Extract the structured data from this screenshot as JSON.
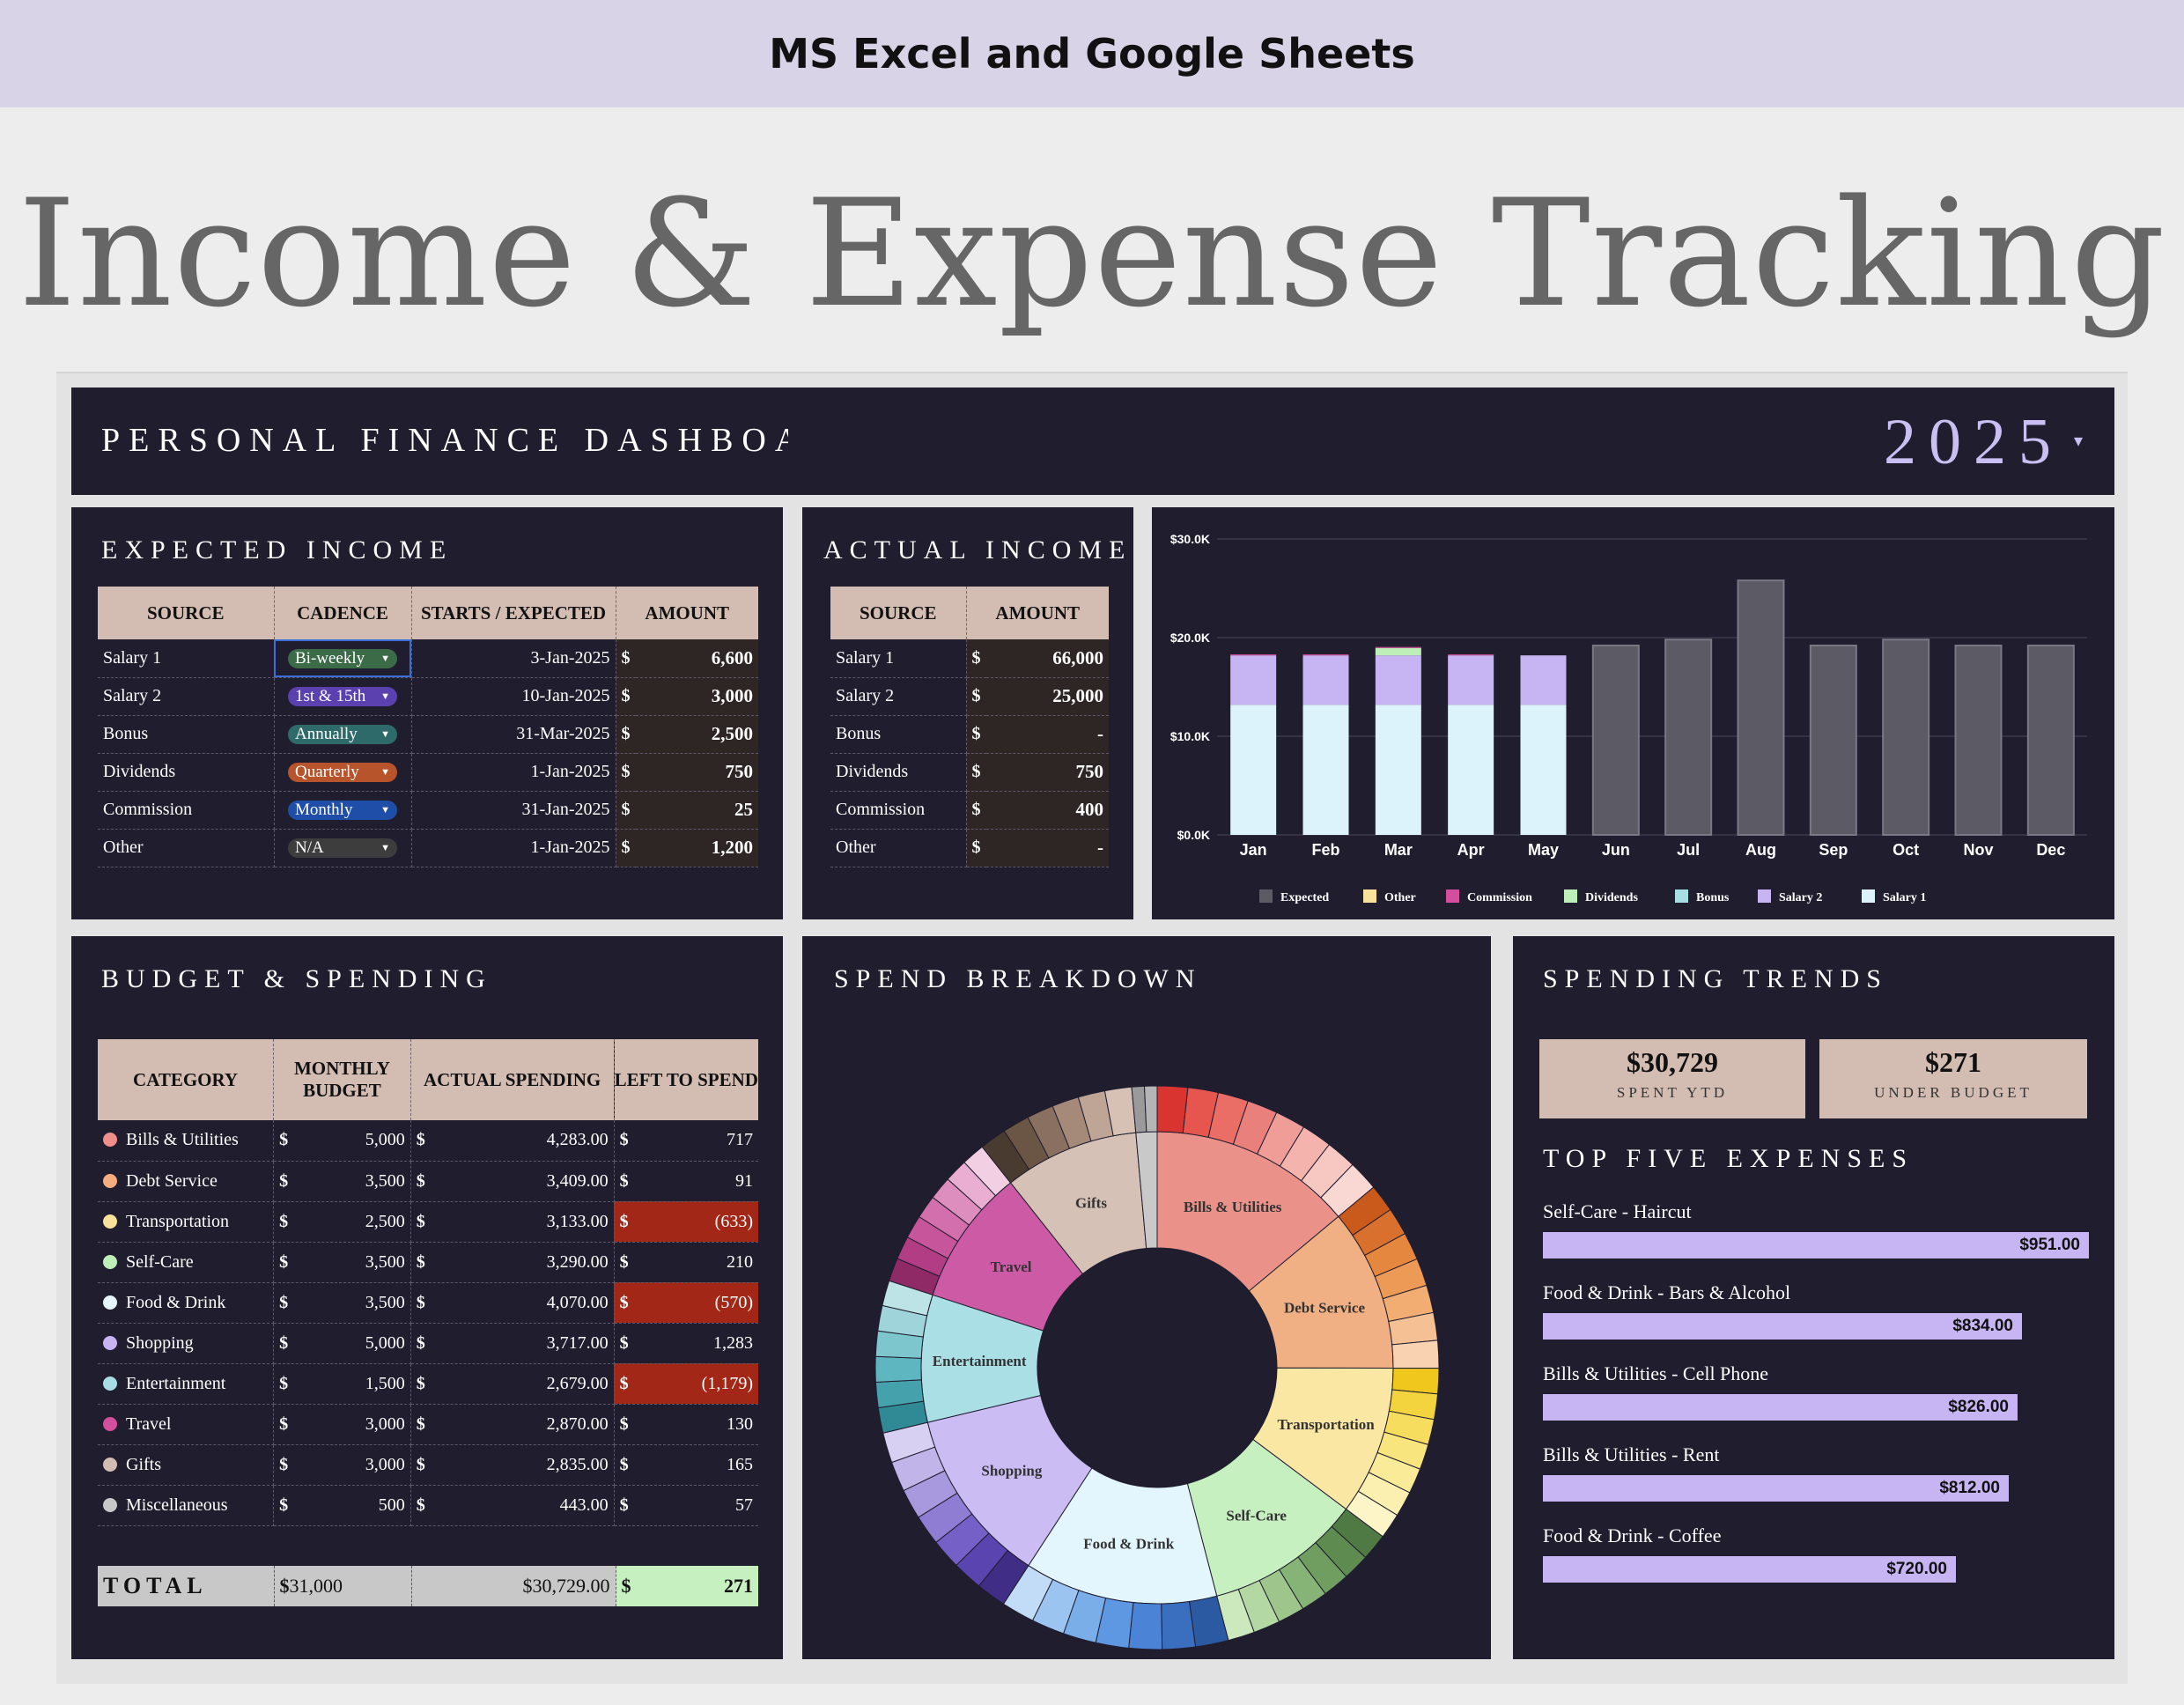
{
  "banner": "MS Excel and Google Sheets",
  "hero_title": "Income & Expense Tracking",
  "dashboard": {
    "title": "PERSONAL FINANCE DASHBOARD",
    "year": "2025"
  },
  "expected_income": {
    "title": "EXPECTED INCOME",
    "headers": [
      "SOURCE",
      "CADENCE",
      "STARTS / EXPECTED",
      "AMOUNT"
    ],
    "rows": [
      {
        "source": "Salary 1",
        "cadence": "Bi-weekly",
        "cadence_color": "#3c6b48",
        "starts": "3-Jan-2025",
        "amount": "6,600"
      },
      {
        "source": "Salary 2",
        "cadence": "1st & 15th",
        "cadence_color": "#5b40b0",
        "starts": "10-Jan-2025",
        "amount": "3,000"
      },
      {
        "source": "Bonus",
        "cadence": "Annually",
        "cadence_color": "#2f6a6a",
        "starts": "31-Mar-2025",
        "amount": "2,500"
      },
      {
        "source": "Dividends",
        "cadence": "Quarterly",
        "cadence_color": "#b8542c",
        "starts": "1-Jan-2025",
        "amount": "750"
      },
      {
        "source": "Commission",
        "cadence": "Monthly",
        "cadence_color": "#1f4ea8",
        "starts": "31-Jan-2025",
        "amount": "25"
      },
      {
        "source": "Other",
        "cadence": "N/A",
        "cadence_color": "#3d3d3d",
        "starts": "1-Jan-2025",
        "amount": "1,200"
      }
    ]
  },
  "actual_income": {
    "title": "ACTUAL INCOME",
    "headers": [
      "SOURCE",
      "AMOUNT"
    ],
    "rows": [
      {
        "source": "Salary 1",
        "amount": "66,000"
      },
      {
        "source": "Salary 2",
        "amount": "25,000"
      },
      {
        "source": "Bonus",
        "amount": "-"
      },
      {
        "source": "Dividends",
        "amount": "750"
      },
      {
        "source": "Commission",
        "amount": "400"
      },
      {
        "source": "Other",
        "amount": "-"
      }
    ]
  },
  "chart_data": {
    "type": "bar",
    "stacked": true,
    "categories": [
      "Jan",
      "Feb",
      "Mar",
      "Apr",
      "May",
      "Jun",
      "Jul",
      "Aug",
      "Sep",
      "Oct",
      "Nov",
      "Dec"
    ],
    "yticks": [
      "$0.0K",
      "$10.0K",
      "$20.0K",
      "$30.0K"
    ],
    "ylim": [
      0,
      30000
    ],
    "grid": true,
    "legend_position": "bottom",
    "series": [
      {
        "name": "Salary 1",
        "color": "#dcf3fb",
        "values": [
          13200,
          13200,
          13200,
          13200,
          13200,
          0,
          0,
          0,
          0,
          0,
          0,
          0
        ]
      },
      {
        "name": "Salary 2",
        "color": "#c6b5f2",
        "values": [
          5000,
          5000,
          5000,
          5000,
          5000,
          0,
          0,
          0,
          0,
          0,
          0,
          0
        ]
      },
      {
        "name": "Bonus",
        "color": "#a8dde3",
        "values": [
          0,
          0,
          0,
          0,
          0,
          0,
          0,
          0,
          0,
          0,
          0,
          0
        ]
      },
      {
        "name": "Dividends",
        "color": "#bfefb8",
        "values": [
          0,
          0,
          750,
          0,
          0,
          0,
          0,
          0,
          0,
          0,
          0,
          0
        ]
      },
      {
        "name": "Commission",
        "color": "#d34e9c",
        "values": [
          100,
          100,
          100,
          100,
          0,
          0,
          0,
          0,
          0,
          0,
          0,
          0
        ]
      },
      {
        "name": "Other",
        "color": "#f8e19a",
        "values": [
          0,
          0,
          0,
          0,
          0,
          0,
          0,
          0,
          0,
          0,
          0,
          0
        ]
      },
      {
        "name": "Expected",
        "color": "#5c5a64",
        "values": [
          0,
          0,
          0,
          0,
          0,
          19200,
          19800,
          25800,
          19200,
          19800,
          19200,
          19200
        ]
      }
    ],
    "legend_order": [
      "Expected",
      "Other",
      "Commission",
      "Dividends",
      "Bonus",
      "Salary 2",
      "Salary 1"
    ]
  },
  "budget": {
    "title": "BUDGET & SPENDING",
    "headers": [
      "CATEGORY",
      "MONTHLY BUDGET",
      "ACTUAL SPENDING",
      "LEFT TO SPEND"
    ],
    "rows": [
      {
        "category": "Bills & Utilities",
        "color": "#ef8f8a",
        "budget": "5,000",
        "actual": "4,283.00",
        "left": "717",
        "neg": false
      },
      {
        "category": "Debt Service",
        "color": "#f5ad7f",
        "budget": "3,500",
        "actual": "3,409.00",
        "left": "91",
        "neg": false
      },
      {
        "category": "Transportation",
        "color": "#f8e19a",
        "budget": "2,500",
        "actual": "3,133.00",
        "left": "(633)",
        "neg": true
      },
      {
        "category": "Self-Care",
        "color": "#bfefb8",
        "budget": "3,500",
        "actual": "3,290.00",
        "left": "210",
        "neg": false
      },
      {
        "category": "Food & Drink",
        "color": "#e4f6fc",
        "budget": "3,500",
        "actual": "4,070.00",
        "left": "(570)",
        "neg": true
      },
      {
        "category": "Shopping",
        "color": "#c6b5f2",
        "budget": "5,000",
        "actual": "3,717.00",
        "left": "1,283",
        "neg": false
      },
      {
        "category": "Entertainment",
        "color": "#a8dde3",
        "budget": "1,500",
        "actual": "2,679.00",
        "left": "(1,179)",
        "neg": true
      },
      {
        "category": "Travel",
        "color": "#d34e9c",
        "budget": "3,000",
        "actual": "2,870.00",
        "left": "130",
        "neg": false
      },
      {
        "category": "Gifts",
        "color": "#d3bcb2",
        "budget": "3,000",
        "actual": "2,835.00",
        "left": "165",
        "neg": false
      },
      {
        "category": "Miscellaneous",
        "color": "#c8c8c8",
        "budget": "500",
        "actual": "443.00",
        "left": "57",
        "neg": false
      }
    ],
    "total": {
      "label": "TOTAL",
      "budget": "31,000",
      "actual": "$30,729.00",
      "left": "271"
    }
  },
  "spend_breakdown": {
    "title": "SPEND BREAKDOWN",
    "inner": [
      {
        "label": "Bills & Utilities",
        "value": 4283,
        "color": "#ea918a"
      },
      {
        "label": "Debt Service",
        "value": 3409,
        "color": "#f1b083"
      },
      {
        "label": "Transportation",
        "value": 3133,
        "color": "#fae7a3"
      },
      {
        "label": "Self-Care",
        "value": 3290,
        "color": "#c6f0bf"
      },
      {
        "label": "Food & Drink",
        "value": 4070,
        "color": "#e4f6fd"
      },
      {
        "label": "Shopping",
        "value": 3717,
        "color": "#cbbcf4"
      },
      {
        "label": "Entertainment",
        "value": 2679,
        "color": "#a9dfe5"
      },
      {
        "label": "Travel",
        "value": 2870,
        "color": "#cc5aa4"
      },
      {
        "label": "Gifts",
        "value": 2835,
        "color": "#d5c1b6"
      },
      {
        "label": "Miscellaneous",
        "value": 443,
        "color": "#c9c9c9"
      }
    ],
    "outer_colors": [
      [
        "#d9342f",
        "#e6564f",
        "#ea6d66",
        "#e9807b",
        "#f09d97",
        "#f5b3ae",
        "#f7c7c2",
        "#f9d7d3"
      ],
      [
        "#c95a1c",
        "#d9702e",
        "#e6873f",
        "#ed9a57",
        "#f2ad72",
        "#f5c093",
        "#f8d2b1"
      ],
      [
        "#f0c81d",
        "#f4d43e",
        "#f6dd5e",
        "#f8e57d",
        "#faeb98",
        "#fcf0b1",
        "#fdf5c8"
      ],
      [
        "#4f7a43",
        "#5e8c50",
        "#6f9e60",
        "#86b376",
        "#9dc58c",
        "#b4d8a3",
        "#cce8bd"
      ],
      [
        "#2b5aa3",
        "#3a6fc0",
        "#4b84d6",
        "#5e98e2",
        "#7aaee9",
        "#9cc4f0",
        "#c2dcf7"
      ],
      [
        "#3f2d86",
        "#5a45b0",
        "#7560c8",
        "#8f7dd4",
        "#a899de",
        "#c0b4e8",
        "#d8d0f2"
      ],
      [
        "#2f8a95",
        "#45a1ac",
        "#5db6c0",
        "#7ec6cd",
        "#9fd5da",
        "#bde3e6"
      ],
      [
        "#8f2a66",
        "#b23d85",
        "#c7559b",
        "#d36fac",
        "#de8dbf",
        "#e9aed2",
        "#f3cfe4"
      ],
      [
        "#4a3b30",
        "#6b5545",
        "#8a7060",
        "#a58a7a",
        "#bfa596",
        "#d6c1b4"
      ],
      [
        "#9a9a9a",
        "#b5b5b5"
      ]
    ]
  },
  "trends": {
    "title": "SPENDING TRENDS",
    "spent_value": "$30,729",
    "spent_label": "SPENT YTD",
    "under_value": "$271",
    "under_label": "UNDER BUDGET",
    "top_title": "TOP FIVE EXPENSES",
    "top": [
      {
        "name": "Self-Care - Haircut",
        "amount": "$951.00",
        "value": 951
      },
      {
        "name": "Food & Drink - Bars & Alcohol",
        "amount": "$834.00",
        "value": 834
      },
      {
        "name": "Bills & Utilities - Cell Phone",
        "amount": "$826.00",
        "value": 826
      },
      {
        "name": "Bills & Utilities - Rent",
        "amount": "$812.00",
        "value": 812
      },
      {
        "name": "Food & Drink - Coffee",
        "amount": "$720.00",
        "value": 720
      }
    ]
  }
}
